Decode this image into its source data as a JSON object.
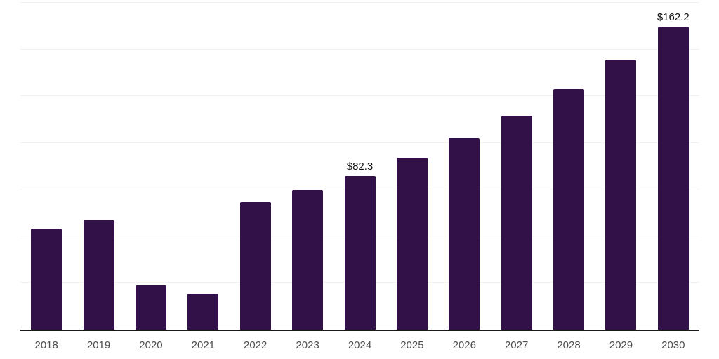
{
  "chart_data": {
    "type": "bar",
    "title": "",
    "xlabel": "",
    "ylabel": "",
    "categories": [
      "2018",
      "2019",
      "2020",
      "2021",
      "2022",
      "2023",
      "2024",
      "2025",
      "2026",
      "2027",
      "2028",
      "2029",
      "2030"
    ],
    "values": [
      53.9,
      58.6,
      23.8,
      19.3,
      68.2,
      74.8,
      82.3,
      91.9,
      102.6,
      114.6,
      128.7,
      144.6,
      162.2
    ],
    "point_labels": [
      "",
      "",
      "",
      "",
      "",
      "",
      "$82.3",
      "",
      "",
      "",
      "",
      "",
      "$162.2"
    ],
    "ylim": [
      0,
      175
    ],
    "gridline_step": 25,
    "grid": "horizontal-only",
    "legend_position": "none",
    "y_axis_tick_labels_visible": false,
    "colors": {
      "bar_fill": "#321149",
      "gridline": "#f2f2f2",
      "axis_line": "#1a1a1a",
      "tick_label": "#4d4d4d",
      "value_label": "#111111",
      "background": "#ffffff"
    }
  }
}
